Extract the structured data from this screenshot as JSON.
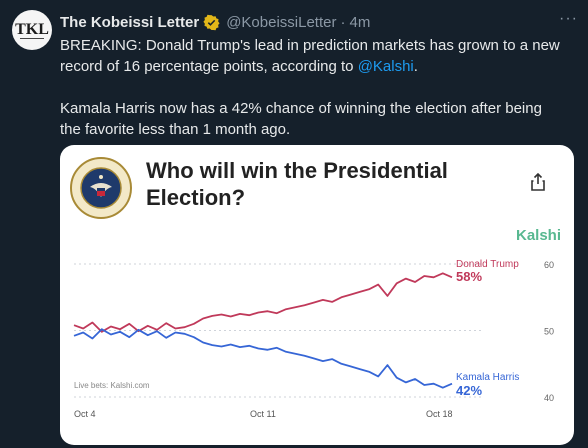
{
  "tweet": {
    "avatar_text": "TKL",
    "author_name": "The Kobeissi Letter",
    "handle": "@KobeissiLetter",
    "separator": "·",
    "time": "4m",
    "more_label": "···",
    "text_line1_pre": "BREAKING: Donald Trump's lead in prediction markets has grown to a new record of 16 percentage points, according to ",
    "mention": "@Kalshi",
    "text_line1_post": ".",
    "text_para2": "Kamala Harris now has a 42% chance of winning the election after being the favorite less than 1 month ago."
  },
  "card": {
    "title": "Who will win the Presidential Election?",
    "brand": "Kalshi",
    "footnote": "Live bets: Kalshi.com",
    "seal_text": "SEAL OF THE PRESIDENT OF THE UNITED STATES"
  },
  "colors": {
    "trump": "#c0395a",
    "harris": "#3666d6",
    "accent": "#1d9bf0",
    "brand": "#58b890"
  },
  "chart_data": {
    "type": "line",
    "x_ticks": [
      "Oct 4",
      "Oct 11",
      "Oct 18"
    ],
    "y_ticks": [
      40,
      50,
      60
    ],
    "ylim": [
      40,
      60
    ],
    "grid": true,
    "series": [
      {
        "name": "Donald Trump",
        "final_label": "58%",
        "values": [
          50.8,
          50.3,
          51.2,
          49.8,
          50.6,
          50.2,
          51.0,
          49.9,
          50.7,
          50.1,
          51.1,
          50.3,
          50.5,
          51.0,
          51.8,
          52.2,
          52.4,
          52.1,
          52.5,
          52.3,
          52.7,
          52.9,
          52.6,
          53.2,
          53.5,
          53.8,
          54.2,
          54.6,
          54.3,
          55.0,
          55.4,
          55.8,
          56.2,
          56.9,
          55.2,
          57.1,
          57.8,
          57.3,
          58.2,
          58.0,
          58.6,
          58.0
        ]
      },
      {
        "name": "Kamala Harris",
        "final_label": "42%",
        "values": [
          49.2,
          49.7,
          48.8,
          50.2,
          49.4,
          49.8,
          49.0,
          50.1,
          49.3,
          49.9,
          48.9,
          49.7,
          49.5,
          49.0,
          48.2,
          47.8,
          47.6,
          47.9,
          47.5,
          47.7,
          47.3,
          47.1,
          47.4,
          46.8,
          46.5,
          46.2,
          45.8,
          45.4,
          45.7,
          45.0,
          44.6,
          44.2,
          43.8,
          43.1,
          44.8,
          42.9,
          42.2,
          42.7,
          41.8,
          42.0,
          41.4,
          42.0
        ]
      }
    ]
  }
}
